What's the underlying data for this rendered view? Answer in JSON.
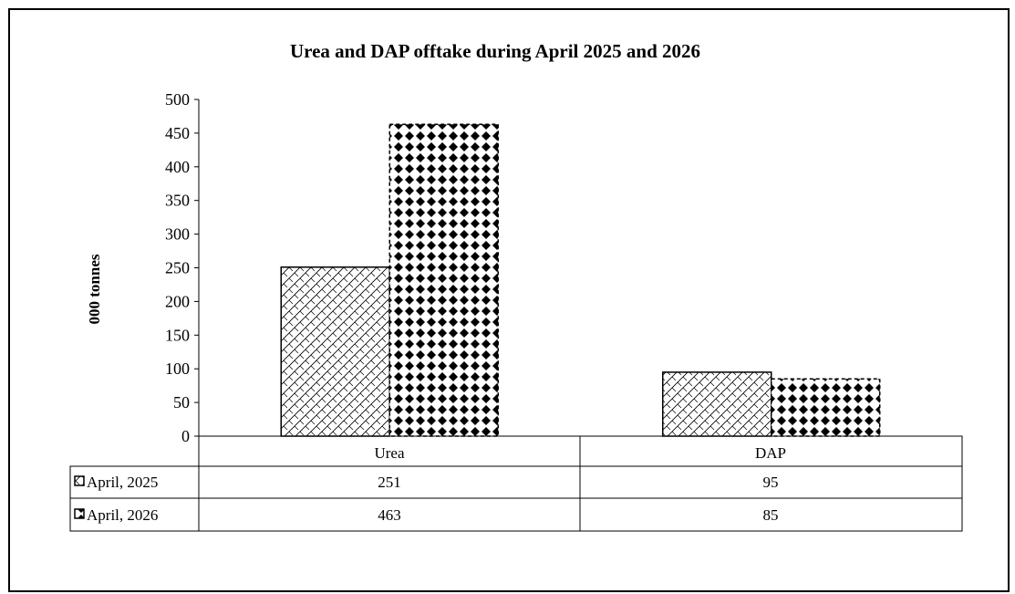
{
  "chart_data": {
    "type": "bar",
    "title": "Urea and DAP offtake during April 2025 and 2026",
    "xlabel": "",
    "ylabel": "000 tonnes",
    "categories": [
      "Urea",
      "DAP"
    ],
    "ylim": [
      0,
      500
    ],
    "yticks": [
      "0",
      "50",
      "100",
      "150",
      "200",
      "250",
      "300",
      "350",
      "400",
      "450",
      "500"
    ],
    "series": [
      {
        "name": "April, 2025",
        "values": [
          251,
          95
        ],
        "pattern": "diagonal-weave",
        "color": "#000000"
      },
      {
        "name": "April, 2026",
        "values": [
          463,
          85
        ],
        "pattern": "diamond-checker",
        "color": "#000000"
      }
    ],
    "data_table": [
      [
        "251",
        "95"
      ],
      [
        "463",
        "85"
      ]
    ],
    "legend": "data-table-left",
    "grid": false
  }
}
